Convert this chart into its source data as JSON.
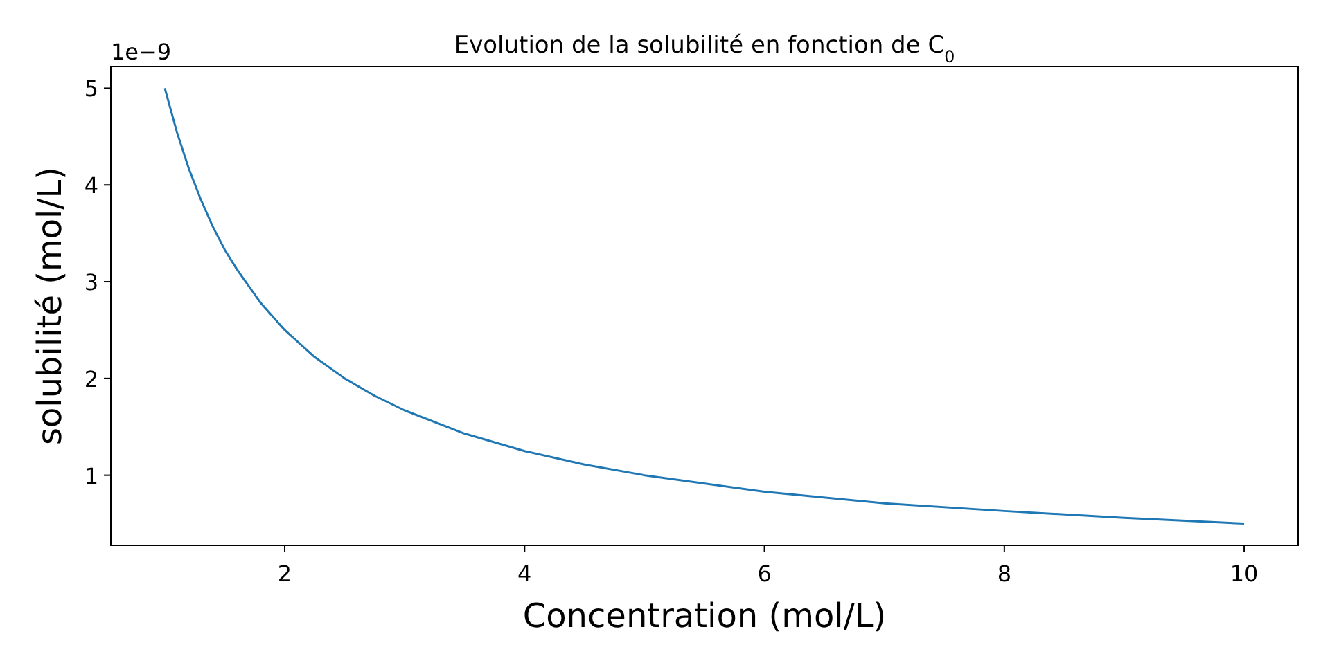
{
  "chart_data": {
    "type": "line",
    "title": "Evolution de la solubilité en fonction de C$_{0}$",
    "xlabel": "Concentration (mol/L)",
    "ylabel": "solubilité (mol/L)",
    "annotations": [
      "1e−9"
    ],
    "series": [
      {
        "color": "#1f77b4",
        "x": [
          1,
          1.1,
          1.2,
          1.3,
          1.4,
          1.5,
          1.6,
          1.8,
          2,
          2.25,
          2.5,
          2.75,
          3,
          3.5,
          4,
          4.5,
          5,
          6,
          7,
          8,
          9,
          10
        ],
        "values": [
          5,
          4.55,
          4.17,
          3.85,
          3.57,
          3.33,
          3.13,
          2.78,
          2.5,
          2.22,
          2,
          1.82,
          1.67,
          1.43,
          1.25,
          1.11,
          1,
          0.83,
          0.71,
          0.63,
          0.56,
          0.5
        ]
      }
    ],
    "xlim": [
      0.55,
      10.45
    ],
    "ylim": [
      0.275,
      5.225
    ],
    "xticks": [
      2,
      4,
      6,
      8,
      10
    ],
    "yticks": [
      1,
      2,
      3,
      4,
      5
    ],
    "grid": false,
    "marker": "none",
    "line_style": "solid"
  }
}
